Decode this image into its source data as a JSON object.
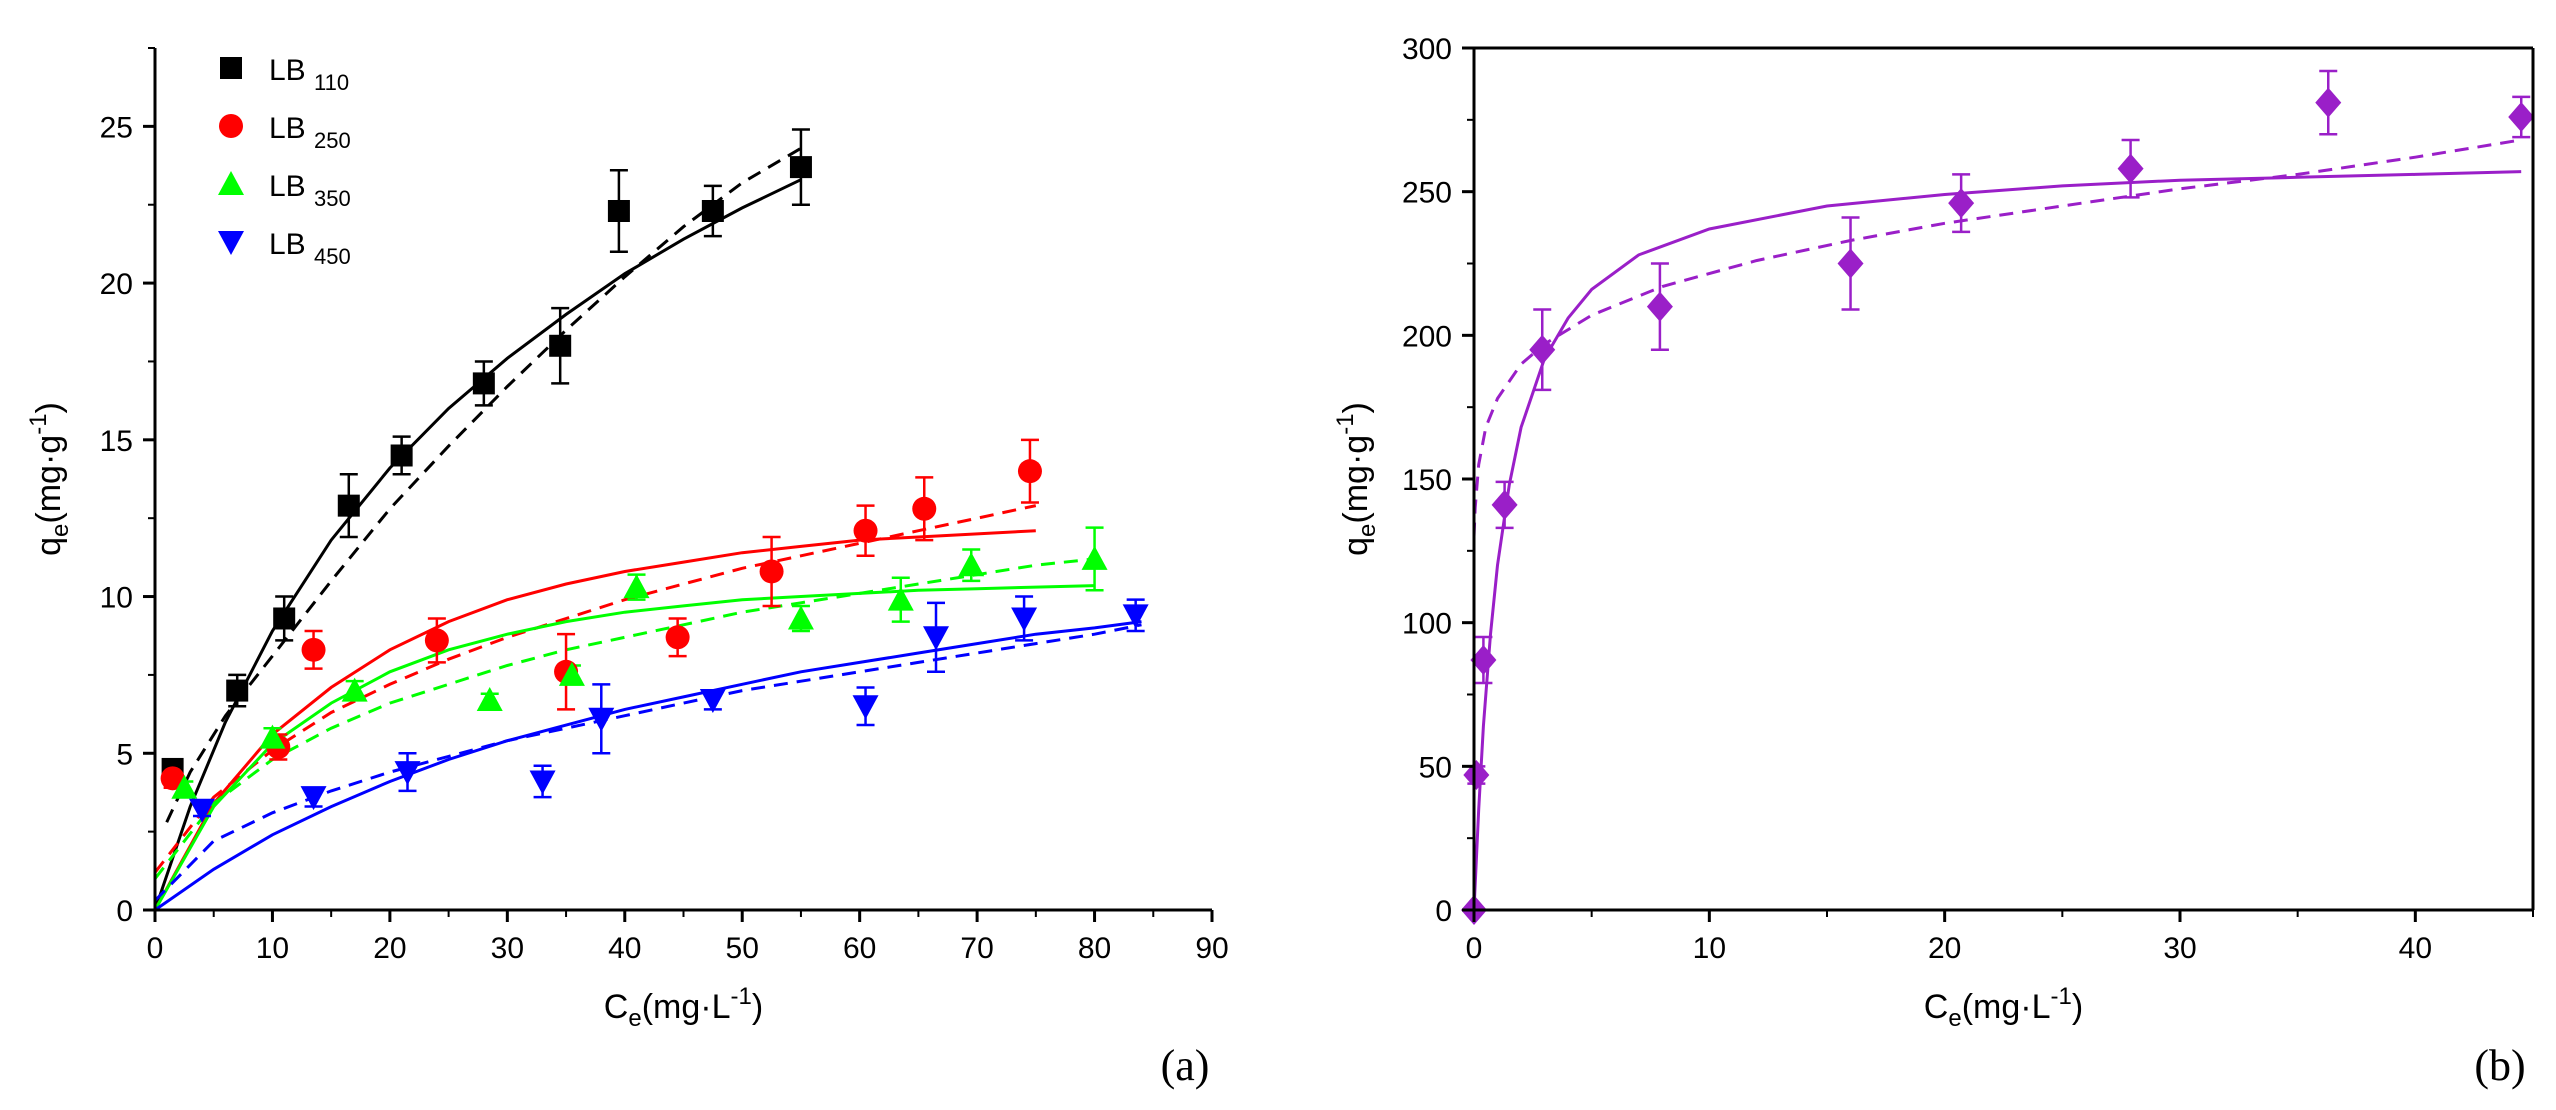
{
  "chart_data": [
    {
      "type": "scatter",
      "panel": "(a)",
      "xlabel": {
        "main": "C",
        "sub": "e",
        "rest": "(mg·L",
        "sup": "-1",
        "close": ")"
      },
      "ylabel": {
        "main": "q",
        "sub": "e",
        "rest": "(mg·g",
        "sup": "-1",
        "close": ")"
      },
      "xlim": [
        0,
        90
      ],
      "ylim": [
        0,
        27.5
      ],
      "xticks": [
        0,
        10,
        20,
        30,
        40,
        50,
        60,
        70,
        80,
        90
      ],
      "yticks": [
        0,
        5,
        10,
        15,
        20,
        25
      ],
      "legend_position": "top-left",
      "series": [
        {
          "name": "LB",
          "sub": "110",
          "marker": "square",
          "color": "#000000",
          "x": [
            1.5,
            7,
            11,
            16.5,
            21,
            28,
            34.5,
            39.5,
            47.5,
            55
          ],
          "y": [
            4.5,
            7.0,
            9.3,
            12.9,
            14.5,
            16.8,
            18.0,
            22.3,
            22.3,
            23.7
          ],
          "err": [
            0.3,
            0.5,
            0.7,
            1.0,
            0.6,
            0.7,
            1.2,
            1.3,
            0.8,
            1.2
          ],
          "fit_solid": [
            [
              0,
              0
            ],
            [
              3,
              3.3
            ],
            [
              6,
              6.0
            ],
            [
              10,
              8.9
            ],
            [
              15,
              11.8
            ],
            [
              20,
              14.1
            ],
            [
              25,
              16.0
            ],
            [
              30,
              17.6
            ],
            [
              35,
              19.0
            ],
            [
              40,
              20.3
            ],
            [
              45,
              21.4
            ],
            [
              50,
              22.4
            ],
            [
              55,
              23.3
            ]
          ],
          "fit_dashed": [
            [
              1,
              2.8
            ],
            [
              3,
              4.4
            ],
            [
              6,
              6.2
            ],
            [
              10,
              8.1
            ],
            [
              15,
              10.5
            ],
            [
              20,
              12.8
            ],
            [
              25,
              14.8
            ],
            [
              30,
              16.7
            ],
            [
              35,
              18.5
            ],
            [
              40,
              20.2
            ],
            [
              45,
              21.8
            ],
            [
              50,
              23.2
            ],
            [
              55,
              24.3
            ]
          ]
        },
        {
          "name": "LB",
          "sub": "250",
          "marker": "circle",
          "color": "#ff0000",
          "x": [
            1.5,
            10.5,
            13.5,
            24,
            35,
            44.5,
            52.5,
            60.5,
            65.5,
            74.5
          ],
          "y": [
            4.2,
            5.2,
            8.3,
            8.6,
            7.6,
            8.7,
            10.8,
            12.1,
            12.8,
            14.0
          ],
          "err": [
            0.3,
            0.4,
            0.6,
            0.7,
            1.2,
            0.6,
            1.1,
            0.8,
            1.0,
            1.0
          ],
          "fit_solid": [
            [
              0,
              0
            ],
            [
              5,
              3.4
            ],
            [
              10,
              5.6
            ],
            [
              15,
              7.1
            ],
            [
              20,
              8.3
            ],
            [
              25,
              9.2
            ],
            [
              30,
              9.9
            ],
            [
              35,
              10.4
            ],
            [
              40,
              10.8
            ],
            [
              45,
              11.1
            ],
            [
              50,
              11.4
            ],
            [
              55,
              11.6
            ],
            [
              60,
              11.8
            ],
            [
              65,
              11.9
            ],
            [
              70,
              12.0
            ],
            [
              75,
              12.1
            ]
          ],
          "fit_dashed": [
            [
              0,
              1.2
            ],
            [
              5,
              3.6
            ],
            [
              10,
              5.1
            ],
            [
              15,
              6.3
            ],
            [
              20,
              7.2
            ],
            [
              25,
              8.0
            ],
            [
              30,
              8.7
            ],
            [
              35,
              9.3
            ],
            [
              40,
              9.9
            ],
            [
              45,
              10.4
            ],
            [
              50,
              10.9
            ],
            [
              55,
              11.3
            ],
            [
              60,
              11.7
            ],
            [
              65,
              12.1
            ],
            [
              70,
              12.5
            ],
            [
              75,
              12.9
            ]
          ]
        },
        {
          "name": "LB",
          "sub": "350",
          "marker": "triangle-up",
          "color": "#00ff00",
          "x": [
            2.5,
            10,
            17,
            28.5,
            35.5,
            41,
            55,
            63.5,
            69.5,
            80
          ],
          "y": [
            3.9,
            5.5,
            7.0,
            6.7,
            7.5,
            10.3,
            9.3,
            9.9,
            11.0,
            11.2
          ],
          "err": [
            0.2,
            0.3,
            0.3,
            0.2,
            0.3,
            0.4,
            0.4,
            0.7,
            0.5,
            1.0
          ],
          "fit_solid": [
            [
              0,
              0
            ],
            [
              5,
              3.3
            ],
            [
              10,
              5.3
            ],
            [
              15,
              6.6
            ],
            [
              20,
              7.6
            ],
            [
              25,
              8.3
            ],
            [
              30,
              8.8
            ],
            [
              35,
              9.2
            ],
            [
              40,
              9.5
            ],
            [
              45,
              9.7
            ],
            [
              50,
              9.9
            ],
            [
              55,
              10.0
            ],
            [
              60,
              10.1
            ],
            [
              65,
              10.2
            ],
            [
              70,
              10.25
            ],
            [
              75,
              10.3
            ],
            [
              80,
              10.35
            ]
          ],
          "fit_dashed": [
            [
              0,
              1.0
            ],
            [
              5,
              3.4
            ],
            [
              10,
              4.8
            ],
            [
              15,
              5.8
            ],
            [
              20,
              6.6
            ],
            [
              25,
              7.2
            ],
            [
              30,
              7.8
            ],
            [
              35,
              8.3
            ],
            [
              40,
              8.7
            ],
            [
              45,
              9.1
            ],
            [
              50,
              9.5
            ],
            [
              55,
              9.8
            ],
            [
              60,
              10.1
            ],
            [
              65,
              10.4
            ],
            [
              70,
              10.7
            ],
            [
              75,
              11.0
            ],
            [
              80,
              11.2
            ]
          ]
        },
        {
          "name": "LB",
          "sub": "450",
          "marker": "triangle-down",
          "color": "#0000ff",
          "x": [
            4,
            13.5,
            21.5,
            33,
            38,
            47.5,
            60.5,
            66.5,
            74,
            83.5
          ],
          "y": [
            3.2,
            3.6,
            4.4,
            4.1,
            6.1,
            6.7,
            6.5,
            8.7,
            9.3,
            9.4
          ],
          "err": [
            0.2,
            0.3,
            0.6,
            0.5,
            1.1,
            0.3,
            0.6,
            1.1,
            0.7,
            0.5
          ],
          "fit_solid": [
            [
              0,
              0
            ],
            [
              5,
              1.3
            ],
            [
              10,
              2.4
            ],
            [
              15,
              3.3
            ],
            [
              20,
              4.1
            ],
            [
              25,
              4.8
            ],
            [
              30,
              5.4
            ],
            [
              35,
              5.9
            ],
            [
              40,
              6.4
            ],
            [
              45,
              6.8
            ],
            [
              50,
              7.2
            ],
            [
              55,
              7.6
            ],
            [
              60,
              7.9
            ],
            [
              65,
              8.2
            ],
            [
              70,
              8.5
            ],
            [
              75,
              8.8
            ],
            [
              80,
              9.0
            ],
            [
              84,
              9.2
            ]
          ],
          "fit_dashed": [
            [
              0,
              0.3
            ],
            [
              5,
              2.2
            ],
            [
              10,
              3.1
            ],
            [
              15,
              3.8
            ],
            [
              20,
              4.4
            ],
            [
              25,
              4.9
            ],
            [
              30,
              5.4
            ],
            [
              35,
              5.8
            ],
            [
              40,
              6.2
            ],
            [
              45,
              6.6
            ],
            [
              50,
              7.0
            ],
            [
              55,
              7.3
            ],
            [
              60,
              7.6
            ],
            [
              65,
              7.9
            ],
            [
              70,
              8.2
            ],
            [
              75,
              8.5
            ],
            [
              80,
              8.8
            ],
            [
              84,
              9.1
            ]
          ]
        }
      ]
    },
    {
      "type": "scatter",
      "panel": "(b)",
      "xlabel": {
        "main": "C",
        "sub": "e",
        "rest": "(mg·L",
        "sup": "-1",
        "close": ")"
      },
      "ylabel": {
        "main": "q",
        "sub": "e",
        "rest": "(mg·g",
        "sup": "-1",
        "close": ")"
      },
      "xlim": [
        0,
        45
      ],
      "ylim": [
        0,
        300
      ],
      "xticks": [
        0,
        10,
        20,
        30,
        40
      ],
      "yticks": [
        0,
        50,
        100,
        150,
        200,
        250,
        300
      ],
      "series": [
        {
          "marker": "diamond",
          "color": "#9a1fc8",
          "x": [
            0,
            0.1,
            0.4,
            1.3,
            2.9,
            7.9,
            16,
            20.7,
            27.9,
            36.3,
            44.5
          ],
          "y": [
            0,
            47,
            87,
            141,
            195,
            210,
            225,
            246,
            258,
            281,
            276
          ],
          "err": [
            0,
            3,
            8,
            8,
            14,
            15,
            16,
            10,
            10,
            11,
            7
          ],
          "fit_solid": [
            [
              0,
              0
            ],
            [
              0.2,
              35
            ],
            [
              0.4,
              64
            ],
            [
              0.7,
              96
            ],
            [
              1,
              120
            ],
            [
              1.5,
              148
            ],
            [
              2,
              168
            ],
            [
              3,
              192
            ],
            [
              4,
              206
            ],
            [
              5,
              216
            ],
            [
              7,
              228
            ],
            [
              10,
              237
            ],
            [
              15,
              245
            ],
            [
              20,
              249
            ],
            [
              25,
              252
            ],
            [
              30,
              254
            ],
            [
              35,
              255
            ],
            [
              40,
              256
            ],
            [
              44.5,
              257
            ]
          ],
          "fit_dashed": [
            [
              0,
              130
            ],
            [
              0.05,
              140
            ],
            [
              0.2,
              155
            ],
            [
              0.5,
              168
            ],
            [
              1,
              178
            ],
            [
              2,
              190
            ],
            [
              3,
              197
            ],
            [
              5,
              207
            ],
            [
              8,
              217
            ],
            [
              12,
              226
            ],
            [
              16,
              233
            ],
            [
              20,
              239
            ],
            [
              25,
              245
            ],
            [
              30,
              251
            ],
            [
              35,
              256
            ],
            [
              40,
              262
            ],
            [
              44.5,
              268
            ]
          ]
        }
      ]
    }
  ]
}
